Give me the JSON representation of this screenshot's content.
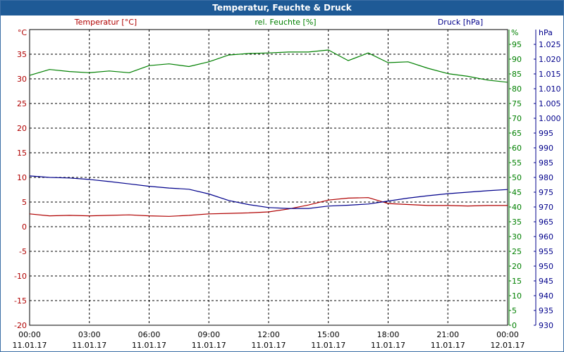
{
  "chart_data": {
    "type": "line",
    "title": "Temperatur, Feuchte & Druck",
    "grid": true,
    "colors": {
      "temperature": "#b00000",
      "humidity": "#008000",
      "pressure": "#00008b",
      "title_bar": "#1e5a96"
    },
    "axes": {
      "left": {
        "label": "Temperatur [°C]",
        "unit": "°C",
        "ylim": [
          -20,
          40
        ],
        "ticks": [
          -20,
          -15,
          -10,
          -5,
          0,
          5,
          10,
          15,
          20,
          25,
          30,
          35
        ]
      },
      "right1": {
        "label": "rel. Feuchte [%]",
        "unit": "%",
        "ylim": [
          0,
          100
        ],
        "ticks": [
          0,
          5,
          10,
          15,
          20,
          25,
          30,
          35,
          40,
          45,
          50,
          55,
          60,
          65,
          70,
          75,
          80,
          85,
          90,
          95
        ]
      },
      "right2": {
        "label": "Druck [hPa]",
        "unit": "hPa",
        "ylim": [
          930,
          1030
        ],
        "ticks": [
          "930",
          "935",
          "940",
          "945",
          "950",
          "955",
          "960",
          "965",
          "970",
          "975",
          "980",
          "985",
          "990",
          "995",
          "1.000",
          "1.005",
          "1.010",
          "1.015",
          "1.020",
          "1.025"
        ]
      }
    },
    "x_ticks": [
      {
        "time": "00:00",
        "date": "11.01.17"
      },
      {
        "time": "03:00",
        "date": "11.01.17"
      },
      {
        "time": "06:00",
        "date": "11.01.17"
      },
      {
        "time": "09:00",
        "date": "11.01.17"
      },
      {
        "time": "12:00",
        "date": "11.01.17"
      },
      {
        "time": "15:00",
        "date": "11.01.17"
      },
      {
        "time": "18:00",
        "date": "11.01.17"
      },
      {
        "time": "21:00",
        "date": "11.01.17"
      },
      {
        "time": "00:00",
        "date": "12.01.17"
      }
    ],
    "xlim": [
      0,
      24
    ],
    "x": [
      0,
      1,
      2,
      3,
      4,
      5,
      6,
      7,
      8,
      9,
      10,
      11,
      12,
      13,
      14,
      15,
      16,
      17,
      18,
      19,
      20,
      21,
      22,
      23,
      24
    ],
    "series": [
      {
        "name": "Temperatur [°C]",
        "axis": "left",
        "values": [
          2.6,
          2.2,
          2.3,
          2.2,
          2.3,
          2.4,
          2.2,
          2.1,
          2.3,
          2.6,
          2.7,
          2.8,
          3.0,
          3.6,
          4.4,
          5.4,
          5.8,
          5.9,
          4.7,
          4.5,
          4.3,
          4.3,
          4.2,
          4.3,
          4.3
        ]
      },
      {
        "name": "rel. Feuchte [%]",
        "axis": "right1",
        "values": [
          84.5,
          86.5,
          85.8,
          85.4,
          86.0,
          85.4,
          87.8,
          88.4,
          87.5,
          89.1,
          91.4,
          91.9,
          92.1,
          92.4,
          92.4,
          93.1,
          89.5,
          92.1,
          88.8,
          89.1,
          86.9,
          85.1,
          84.2,
          82.9,
          82.2
        ]
      },
      {
        "name": "Druck [hPa]",
        "axis": "right2",
        "values": [
          980.5,
          980.0,
          979.8,
          979.3,
          978.6,
          977.8,
          977.0,
          976.4,
          976.0,
          974.4,
          972.2,
          970.8,
          969.8,
          969.5,
          969.5,
          970.3,
          970.6,
          971.0,
          972.0,
          973.0,
          973.8,
          974.5,
          975.0,
          975.5,
          975.9
        ]
      }
    ]
  }
}
